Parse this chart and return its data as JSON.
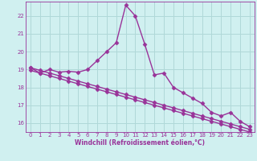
{
  "xlabel": "Windchill (Refroidissement éolien,°C)",
  "x_values": [
    0,
    1,
    2,
    3,
    4,
    5,
    6,
    7,
    8,
    9,
    10,
    11,
    12,
    13,
    14,
    15,
    16,
    17,
    18,
    19,
    20,
    21,
    22,
    23
  ],
  "y_main": [
    19.1,
    18.8,
    19.0,
    18.85,
    18.9,
    18.85,
    19.0,
    19.5,
    20.0,
    20.5,
    22.6,
    22.0,
    20.4,
    18.7,
    18.8,
    18.0,
    17.7,
    17.4,
    17.1,
    16.6,
    16.4,
    16.6,
    16.1,
    15.8
  ],
  "y_diag1": [
    19.1,
    18.95,
    18.8,
    18.65,
    18.5,
    18.35,
    18.2,
    18.05,
    17.9,
    17.75,
    17.6,
    17.45,
    17.3,
    17.15,
    17.0,
    16.85,
    16.7,
    16.55,
    16.4,
    16.25,
    16.1,
    15.95,
    15.8,
    15.65
  ],
  "y_diag2": [
    18.95,
    18.8,
    18.65,
    18.5,
    18.35,
    18.2,
    18.05,
    17.9,
    17.75,
    17.6,
    17.45,
    17.3,
    17.15,
    17.0,
    16.85,
    16.7,
    16.55,
    16.4,
    16.25,
    16.1,
    15.95,
    15.8,
    15.65,
    15.5
  ],
  "line_color": "#993399",
  "bg_color": "#d0f0f0",
  "grid_color": "#b0d8d8",
  "ylim": [
    15.5,
    22.8
  ],
  "yticks": [
    16,
    17,
    18,
    19,
    20,
    21,
    22
  ],
  "xticks": [
    0,
    1,
    2,
    3,
    4,
    5,
    6,
    7,
    8,
    9,
    10,
    11,
    12,
    13,
    14,
    15,
    16,
    17,
    18,
    19,
    20,
    21,
    22,
    23
  ],
  "marker": "D",
  "marker_size": 2.5,
  "linewidth": 1.0
}
